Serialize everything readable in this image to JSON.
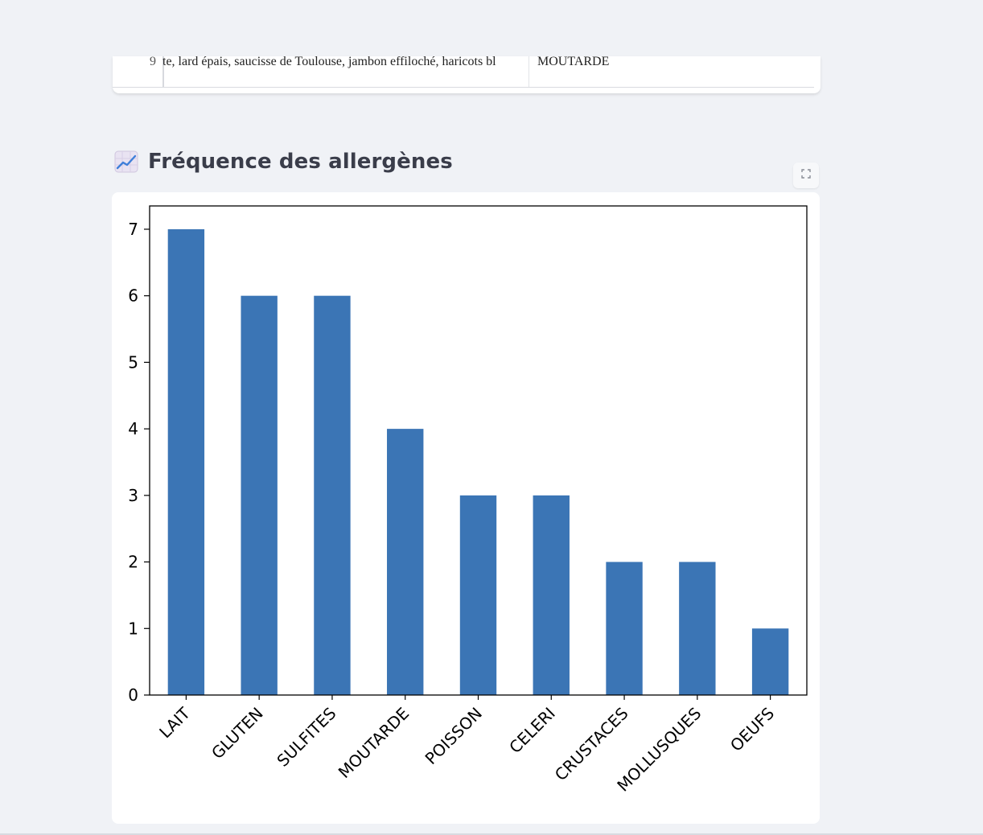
{
  "table": {
    "row_index": "9",
    "dishes_text": "te, lard épais, saucisse de Toulouse, jambon effiloché, haricots bl",
    "allergen": "MOUTARDE"
  },
  "section": {
    "title": "Fréquence des allergènes",
    "icon": "chart-increasing-icon"
  },
  "expand_button": {
    "icon": "fullscreen-expand-icon"
  },
  "chart_data": {
    "type": "bar",
    "categories": [
      "LAIT",
      "GLUTEN",
      "SULFITES",
      "MOUTARDE",
      "POISSON",
      "CELERI",
      "CRUSTACES",
      "MOLLUSQUES",
      "OEUFS"
    ],
    "values": [
      7,
      6,
      6,
      4,
      3,
      3,
      2,
      2,
      1
    ],
    "ylim": [
      0,
      7.35
    ],
    "yticks": [
      0,
      1,
      2,
      3,
      4,
      5,
      6,
      7
    ],
    "xlabel": "",
    "ylabel": "",
    "title": "",
    "grid": false,
    "bar_color": "#3b75b5"
  },
  "colors": {
    "page_bg": "#f0f2f6",
    "card_bg": "#ffffff",
    "title_text": "#3a3d4a",
    "bar": "#3b75b5"
  }
}
